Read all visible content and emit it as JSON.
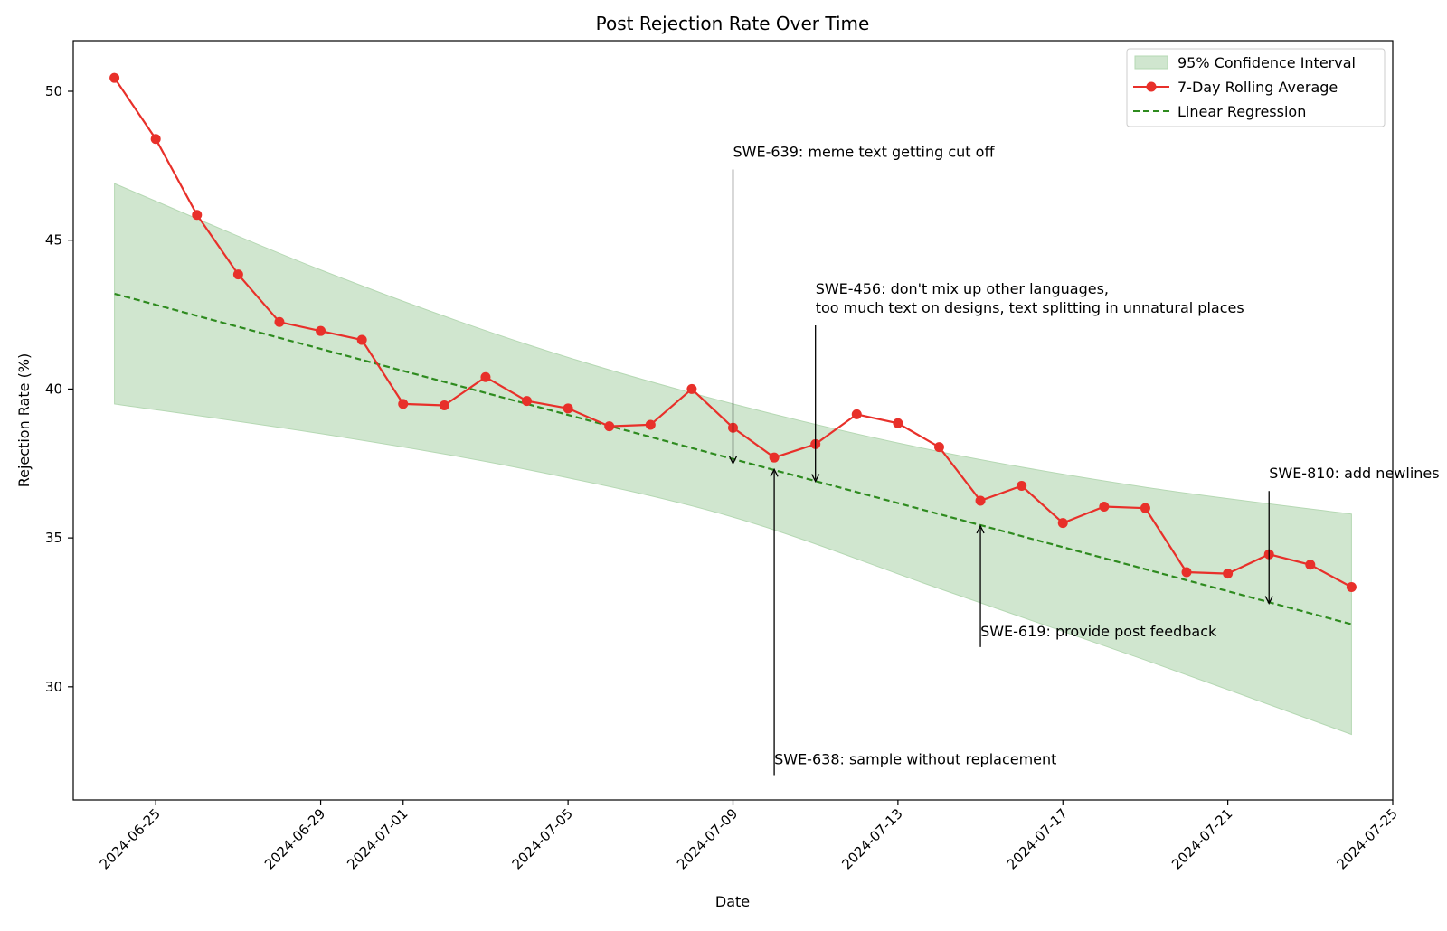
{
  "chart_data": {
    "type": "line",
    "title": "Post Rejection Rate Over Time",
    "xlabel": "Date",
    "ylabel": "Rejection Rate (%)",
    "xlim": [
      "2024-06-23",
      "2024-07-25"
    ],
    "ylim": [
      26.2,
      51.7
    ],
    "yticks": [
      30,
      35,
      40,
      45,
      50
    ],
    "xticks": [
      "2024-06-25",
      "2024-06-29",
      "2024-07-01",
      "2024-07-05",
      "2024-07-09",
      "2024-07-13",
      "2024-07-17",
      "2024-07-21",
      "2024-07-25"
    ],
    "grid": false,
    "legend_position": "upper-right",
    "legend": {
      "ci": "95% Confidence Interval",
      "rolling": "7-Day Rolling Average",
      "regression": "Linear Regression"
    },
    "colors": {
      "rolling": "#e8302a",
      "regression": "#2e8b1f",
      "ci_fill": "#d0e6cf",
      "ci_edge": "#b5d8b3"
    },
    "rolling_average": [
      {
        "date": "2024-06-24",
        "value": 50.45
      },
      {
        "date": "2024-06-25",
        "value": 48.4
      },
      {
        "date": "2024-06-26",
        "value": 45.85
      },
      {
        "date": "2024-06-27",
        "value": 43.85
      },
      {
        "date": "2024-06-28",
        "value": 42.25
      },
      {
        "date": "2024-06-29",
        "value": 41.95
      },
      {
        "date": "2024-06-30",
        "value": 41.65
      },
      {
        "date": "2024-07-01",
        "value": 39.5
      },
      {
        "date": "2024-07-02",
        "value": 39.45
      },
      {
        "date": "2024-07-03",
        "value": 40.4
      },
      {
        "date": "2024-07-04",
        "value": 39.6
      },
      {
        "date": "2024-07-05",
        "value": 39.35
      },
      {
        "date": "2024-07-06",
        "value": 38.75
      },
      {
        "date": "2024-07-07",
        "value": 38.8
      },
      {
        "date": "2024-07-08",
        "value": 40.0
      },
      {
        "date": "2024-07-09",
        "value": 38.7
      },
      {
        "date": "2024-07-10",
        "value": 37.7
      },
      {
        "date": "2024-07-11",
        "value": 38.15
      },
      {
        "date": "2024-07-12",
        "value": 39.15
      },
      {
        "date": "2024-07-13",
        "value": 38.85
      },
      {
        "date": "2024-07-14",
        "value": 38.05
      },
      {
        "date": "2024-07-15",
        "value": 36.25
      },
      {
        "date": "2024-07-16",
        "value": 36.75
      },
      {
        "date": "2024-07-17",
        "value": 35.5
      },
      {
        "date": "2024-07-18",
        "value": 36.05
      },
      {
        "date": "2024-07-19",
        "value": 36.0
      },
      {
        "date": "2024-07-20",
        "value": 33.85
      },
      {
        "date": "2024-07-21",
        "value": 33.8
      },
      {
        "date": "2024-07-22",
        "value": 34.45
      },
      {
        "date": "2024-07-23",
        "value": 34.1
      },
      {
        "date": "2024-07-24",
        "value": 33.35
      }
    ],
    "regression_line": [
      {
        "date": "2024-06-24",
        "value": 43.2
      },
      {
        "date": "2024-07-24",
        "value": 32.1
      }
    ],
    "confidence_interval": {
      "dates": [
        "2024-06-24",
        "2024-06-29",
        "2024-07-04",
        "2024-07-09",
        "2024-07-14",
        "2024-07-19",
        "2024-07-24"
      ],
      "upper": [
        46.9,
        44.0,
        41.5,
        39.5,
        37.9,
        36.7,
        35.8
      ],
      "lower": [
        39.5,
        38.5,
        37.3,
        35.7,
        33.3,
        30.9,
        28.4
      ]
    },
    "annotations": [
      {
        "lines": [
          "SWE-639: meme text getting cut off"
        ],
        "point_date": "2024-07-09",
        "point_value": 37.5,
        "text_date": "2024-07-09",
        "text_value": 47.8
      },
      {
        "lines": [
          "SWE-456: don't mix up other languages,",
          "too much text on designs, text splitting in unnatural places"
        ],
        "point_date": "2024-07-11",
        "point_value": 36.9,
        "text_date": "2024-07-11",
        "text_value": 43.2
      },
      {
        "lines": [
          "SWE-810: add newlines"
        ],
        "point_date": "2024-07-22",
        "point_value": 32.8,
        "text_date": "2024-07-22",
        "text_value": 37.0
      },
      {
        "lines": [
          "SWE-619: provide post feedback"
        ],
        "point_date": "2024-07-15",
        "point_value": 35.4,
        "text_date": "2024-07-15",
        "text_value": 31.7
      },
      {
        "lines": [
          "SWE-638: sample without replacement"
        ],
        "point_date": "2024-07-10",
        "point_value": 37.3,
        "text_date": "2024-07-10",
        "text_value": 27.4
      }
    ]
  }
}
